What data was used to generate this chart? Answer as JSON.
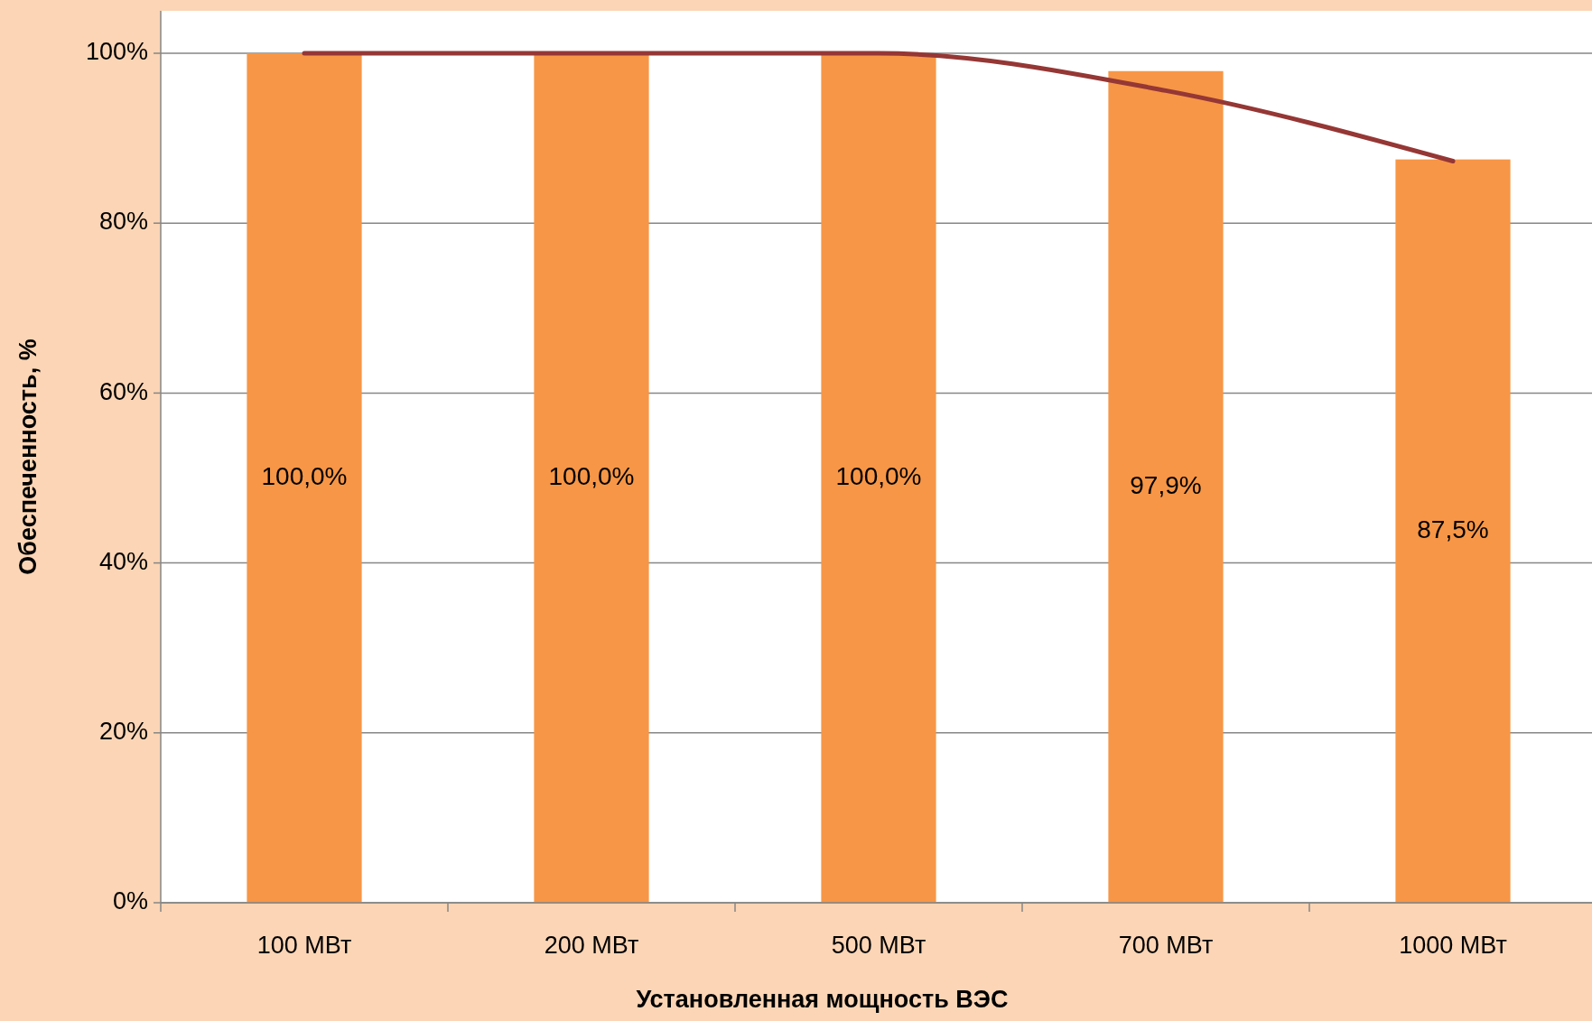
{
  "chart_data": {
    "type": "bar",
    "xlabel": "Установленная мощность ВЭС",
    "ylabel": "Обеспеченность, %",
    "categories": [
      "100 МВт",
      "200 МВт",
      "500 МВт",
      "700 МВт",
      "1000 МВт"
    ],
    "series": [
      {
        "color": "#f79646",
        "values": [
          100,
          100,
          100,
          97.9,
          87.5
        ],
        "value_labels": [
          "100,0%",
          "100,0%",
          "100,0%",
          "97,9%",
          "87,5%"
        ]
      },
      {
        "type": "line",
        "color": "#953735",
        "values": [
          100,
          100,
          100,
          95.6,
          87.3
        ]
      }
    ],
    "ylim": [
      0,
      100
    ],
    "yticks": [
      {
        "value": 0,
        "label": "0%"
      },
      {
        "value": 20,
        "label": "20%"
      },
      {
        "value": 40,
        "label": "40%"
      },
      {
        "value": 60,
        "label": "60%"
      },
      {
        "value": 80,
        "label": "80%"
      },
      {
        "value": 100,
        "label": "100%"
      }
    ],
    "grid": "y"
  }
}
